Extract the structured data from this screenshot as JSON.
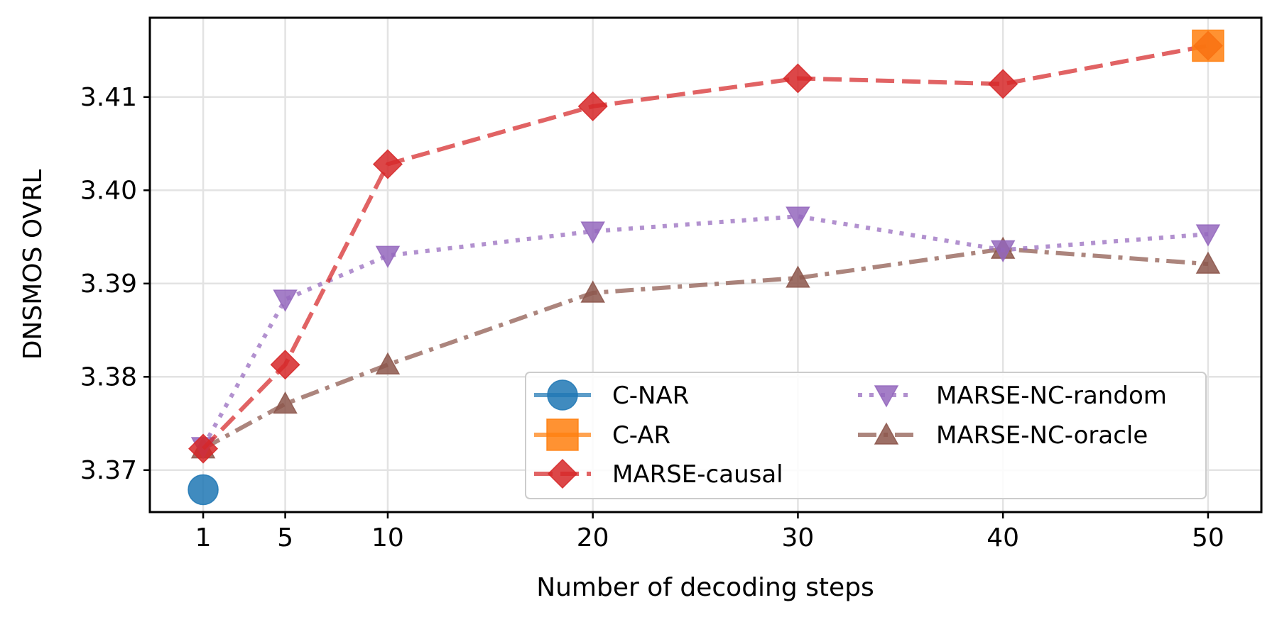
{
  "chart_data": {
    "type": "line",
    "xlabel": "Number of decoding steps",
    "ylabel": "DNSMOS OVRL",
    "xlim": [
      -1.6,
      52.6
    ],
    "ylim": [
      3.3655,
      3.4185
    ],
    "x_ticks": [
      1,
      5,
      10,
      20,
      30,
      40,
      50
    ],
    "y_ticks": [
      3.37,
      3.38,
      3.39,
      3.4,
      3.41
    ],
    "x_tick_labels": [
      "1",
      "5",
      "10",
      "20",
      "30",
      "40",
      "50"
    ],
    "y_tick_labels": [
      "3.37",
      "3.38",
      "3.39",
      "3.40",
      "3.41"
    ],
    "grid": true,
    "legend": {
      "placement": "lower-right",
      "columns": 2
    },
    "series": [
      {
        "name": "C-NAR",
        "color": "#1f77b4",
        "marker": "circle",
        "linestyle": "solid",
        "x": [
          1
        ],
        "y": [
          3.3679
        ]
      },
      {
        "name": "C-AR",
        "color": "#ff7f0e",
        "marker": "square",
        "linestyle": "solid",
        "x": [
          50
        ],
        "y": [
          3.4155
        ]
      },
      {
        "name": "MARSE-causal",
        "color": "#d62728",
        "marker": "diamond",
        "linestyle": "dashed",
        "x": [
          1,
          5,
          10,
          20,
          30,
          40,
          50
        ],
        "y": [
          3.3723,
          3.3813,
          3.4028,
          3.409,
          3.412,
          3.4114,
          3.4155
        ]
      },
      {
        "name": "MARSE-NC-random",
        "color": "#9467bd",
        "marker": "triangle-down",
        "linestyle": "dotted",
        "x": [
          1,
          5,
          10,
          20,
          30,
          40,
          50
        ],
        "y": [
          3.3725,
          3.3883,
          3.393,
          3.3956,
          3.3972,
          3.3936,
          3.3953
        ]
      },
      {
        "name": "MARSE-NC-oracle",
        "color": "#8c564b",
        "marker": "triangle-up",
        "linestyle": "dashdot",
        "x": [
          1,
          5,
          10,
          20,
          30,
          40,
          50
        ],
        "y": [
          3.3723,
          3.3771,
          3.3813,
          3.389,
          3.3906,
          3.3937,
          3.3921
        ]
      }
    ]
  }
}
